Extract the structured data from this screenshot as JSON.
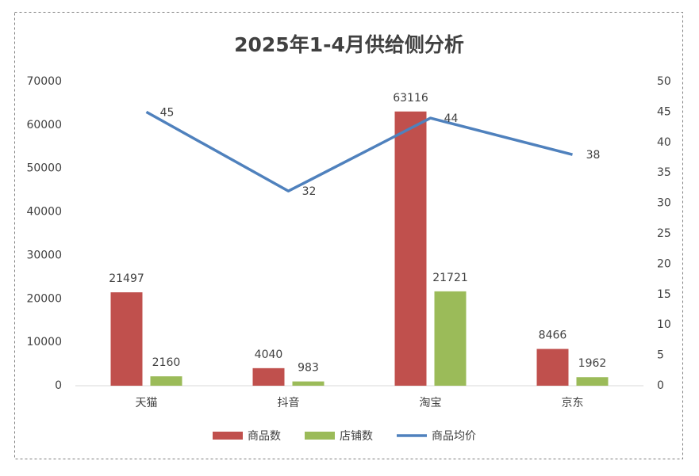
{
  "chart_data": {
    "type": "bar",
    "title": "2025年1-4月供给侧分析",
    "categories": [
      "天猫",
      "抖音",
      "淘宝",
      "京东"
    ],
    "series": [
      {
        "name": "商品数",
        "color": "#c0504d",
        "values": [
          21497,
          4040,
          63116,
          8466
        ]
      },
      {
        "name": "店铺数",
        "color": "#9bbb59",
        "values": [
          2160,
          983,
          21721,
          1962
        ]
      },
      {
        "name": "商品均价",
        "color": "#4f81bd",
        "type": "line",
        "axis": "y2",
        "values": [
          45,
          32,
          44,
          38
        ]
      }
    ],
    "ylim": [
      0,
      70000
    ],
    "yticks": [
      0,
      10000,
      20000,
      30000,
      40000,
      50000,
      60000,
      70000
    ],
    "y2lim": [
      0,
      50
    ],
    "y2ticks": [
      0,
      5,
      10,
      15,
      20,
      25,
      30,
      35,
      40,
      45,
      50
    ],
    "grid": false,
    "legend": "bottom"
  }
}
